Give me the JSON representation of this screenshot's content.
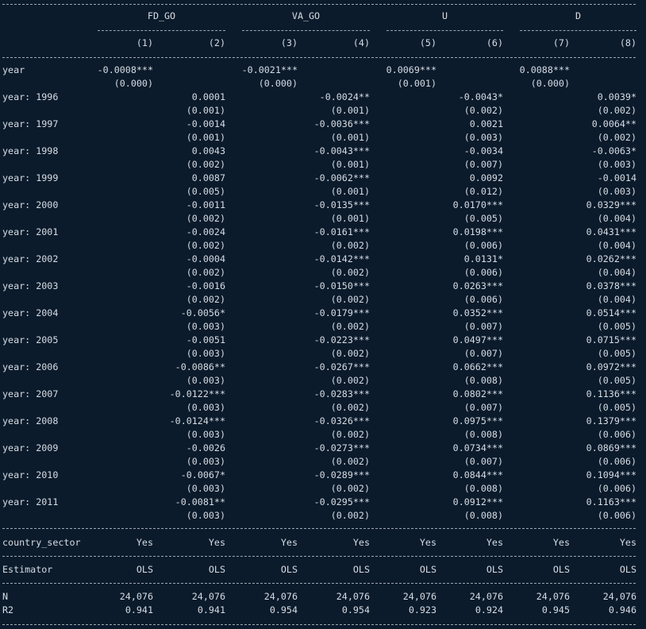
{
  "groups": [
    "FD_GO",
    "VA_GO",
    "U",
    "D"
  ],
  "columns": [
    "(1)",
    "(2)",
    "(3)",
    "(4)",
    "(5)",
    "(6)",
    "(7)",
    "(8)"
  ],
  "rows": [
    {
      "label": "year",
      "coef": [
        "-0.0008***",
        "",
        "-0.0021***",
        "",
        "0.0069***",
        "",
        "0.0088***",
        ""
      ],
      "se": [
        "(0.000)",
        "",
        "(0.000)",
        "",
        "(0.001)",
        "",
        "(0.000)",
        ""
      ]
    },
    {
      "label": "year: 1996",
      "coef": [
        "",
        "0.0001",
        "",
        "-0.0024**",
        "",
        "-0.0043*",
        "",
        "0.0039*"
      ],
      "se": [
        "",
        "(0.001)",
        "",
        "(0.001)",
        "",
        "(0.002)",
        "",
        "(0.002)"
      ]
    },
    {
      "label": "year: 1997",
      "coef": [
        "",
        "-0.0014",
        "",
        "-0.0036***",
        "",
        "0.0021",
        "",
        "0.0064**"
      ],
      "se": [
        "",
        "(0.001)",
        "",
        "(0.001)",
        "",
        "(0.003)",
        "",
        "(0.002)"
      ]
    },
    {
      "label": "year: 1998",
      "coef": [
        "",
        "0.0043",
        "",
        "-0.0043***",
        "",
        "-0.0034",
        "",
        "-0.0063*"
      ],
      "se": [
        "",
        "(0.002)",
        "",
        "(0.001)",
        "",
        "(0.007)",
        "",
        "(0.003)"
      ]
    },
    {
      "label": "year: 1999",
      "coef": [
        "",
        "0.0087",
        "",
        "-0.0062***",
        "",
        "0.0092",
        "",
        "-0.0014"
      ],
      "se": [
        "",
        "(0.005)",
        "",
        "(0.001)",
        "",
        "(0.012)",
        "",
        "(0.003)"
      ]
    },
    {
      "label": "year: 2000",
      "coef": [
        "",
        "-0.0011",
        "",
        "-0.0135***",
        "",
        "0.0170***",
        "",
        "0.0329***"
      ],
      "se": [
        "",
        "(0.002)",
        "",
        "(0.001)",
        "",
        "(0.005)",
        "",
        "(0.004)"
      ]
    },
    {
      "label": "year: 2001",
      "coef": [
        "",
        "-0.0024",
        "",
        "-0.0161***",
        "",
        "0.0198***",
        "",
        "0.0431***"
      ],
      "se": [
        "",
        "(0.002)",
        "",
        "(0.002)",
        "",
        "(0.006)",
        "",
        "(0.004)"
      ]
    },
    {
      "label": "year: 2002",
      "coef": [
        "",
        "-0.0004",
        "",
        "-0.0142***",
        "",
        "0.0131*",
        "",
        "0.0262***"
      ],
      "se": [
        "",
        "(0.002)",
        "",
        "(0.002)",
        "",
        "(0.006)",
        "",
        "(0.004)"
      ]
    },
    {
      "label": "year: 2003",
      "coef": [
        "",
        "-0.0016",
        "",
        "-0.0150***",
        "",
        "0.0263***",
        "",
        "0.0378***"
      ],
      "se": [
        "",
        "(0.002)",
        "",
        "(0.002)",
        "",
        "(0.006)",
        "",
        "(0.004)"
      ]
    },
    {
      "label": "year: 2004",
      "coef": [
        "",
        "-0.0056*",
        "",
        "-0.0179***",
        "",
        "0.0352***",
        "",
        "0.0514***"
      ],
      "se": [
        "",
        "(0.003)",
        "",
        "(0.002)",
        "",
        "(0.007)",
        "",
        "(0.005)"
      ]
    },
    {
      "label": "year: 2005",
      "coef": [
        "",
        "-0.0051",
        "",
        "-0.0223***",
        "",
        "0.0497***",
        "",
        "0.0715***"
      ],
      "se": [
        "",
        "(0.003)",
        "",
        "(0.002)",
        "",
        "(0.007)",
        "",
        "(0.005)"
      ]
    },
    {
      "label": "year: 2006",
      "coef": [
        "",
        "-0.0086**",
        "",
        "-0.0267***",
        "",
        "0.0662***",
        "",
        "0.0972***"
      ],
      "se": [
        "",
        "(0.003)",
        "",
        "(0.002)",
        "",
        "(0.008)",
        "",
        "(0.005)"
      ]
    },
    {
      "label": "year: 2007",
      "coef": [
        "",
        "-0.0122***",
        "",
        "-0.0283***",
        "",
        "0.0802***",
        "",
        "0.1136***"
      ],
      "se": [
        "",
        "(0.003)",
        "",
        "(0.002)",
        "",
        "(0.007)",
        "",
        "(0.005)"
      ]
    },
    {
      "label": "year: 2008",
      "coef": [
        "",
        "-0.0124***",
        "",
        "-0.0326***",
        "",
        "0.0975***",
        "",
        "0.1379***"
      ],
      "se": [
        "",
        "(0.003)",
        "",
        "(0.002)",
        "",
        "(0.008)",
        "",
        "(0.006)"
      ]
    },
    {
      "label": "year: 2009",
      "coef": [
        "",
        "-0.0026",
        "",
        "-0.0273***",
        "",
        "0.0734***",
        "",
        "0.0869***"
      ],
      "se": [
        "",
        "(0.003)",
        "",
        "(0.002)",
        "",
        "(0.007)",
        "",
        "(0.006)"
      ]
    },
    {
      "label": "year: 2010",
      "coef": [
        "",
        "-0.0067*",
        "",
        "-0.0289***",
        "",
        "0.0844***",
        "",
        "0.1094***"
      ],
      "se": [
        "",
        "(0.003)",
        "",
        "(0.002)",
        "",
        "(0.008)",
        "",
        "(0.006)"
      ]
    },
    {
      "label": "year: 2011",
      "coef": [
        "",
        "-0.0081**",
        "",
        "-0.0295***",
        "",
        "0.0912***",
        "",
        "0.1163***"
      ],
      "se": [
        "",
        "(0.003)",
        "",
        "(0.002)",
        "",
        "(0.008)",
        "",
        "(0.006)"
      ]
    }
  ],
  "fixed_effects": {
    "label": "country_sector",
    "values": [
      "Yes",
      "Yes",
      "Yes",
      "Yes",
      "Yes",
      "Yes",
      "Yes",
      "Yes"
    ]
  },
  "estimator": {
    "label": "Estimator",
    "values": [
      "OLS",
      "OLS",
      "OLS",
      "OLS",
      "OLS",
      "OLS",
      "OLS",
      "OLS"
    ]
  },
  "stats": [
    {
      "label": "N",
      "values": [
        "24,076",
        "24,076",
        "24,076",
        "24,076",
        "24,076",
        "24,076",
        "24,076",
        "24,076"
      ]
    },
    {
      "label": "R2",
      "values": [
        "0.941",
        "0.941",
        "0.954",
        "0.954",
        "0.923",
        "0.924",
        "0.945",
        "0.946"
      ]
    }
  ],
  "colors": {
    "background": "#0c1b2b",
    "text": "#d4dde6",
    "rule": "#9aa7b4"
  }
}
